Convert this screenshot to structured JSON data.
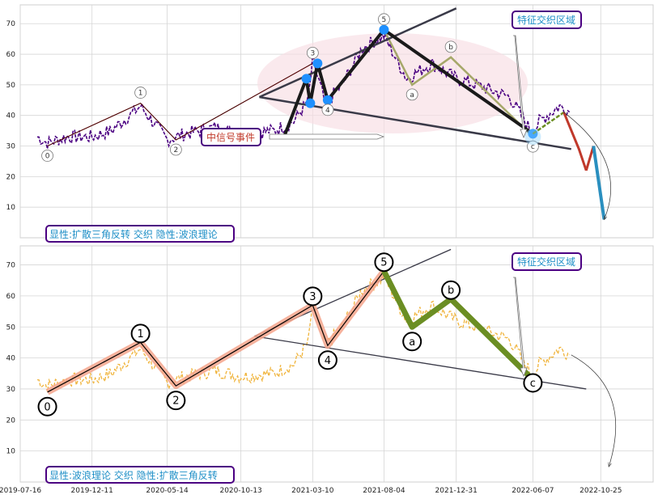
{
  "chart_data": [
    {
      "type": "line",
      "panel": "top",
      "ylim": [
        0,
        75
      ],
      "yticks": [
        10,
        20,
        30,
        40,
        50,
        60,
        70
      ],
      "grid": true,
      "series": [
        {
          "color": "#4b0082",
          "style": "dashed-noisy",
          "x": [
            "2019-08-20",
            "2019-09-10",
            "2019-10-20",
            "2019-12-11",
            "2020-01-20",
            "2020-03-20",
            "2020-05-14",
            "2020-06-20",
            "2020-08-20",
            "2020-10-13",
            "2020-12-20",
            "2021-01-30",
            "2021-03-01",
            "2021-03-10",
            "2021-04-05",
            "2021-05-10",
            "2021-06-20",
            "2021-08-04",
            "2021-09-20",
            "2021-11-10",
            "2021-12-31",
            "2022-02-10",
            "2022-04-20",
            "2022-06-07",
            "2022-06-20",
            "2022-08-01",
            "2022-08-25"
          ],
          "y": [
            33,
            31,
            33,
            33,
            35,
            43,
            32,
            34,
            36,
            34,
            35,
            38,
            45,
            58,
            44,
            50,
            62,
            66,
            52,
            57,
            52,
            50,
            46,
            34,
            38,
            43,
            41
          ]
        }
      ],
      "wave_points": [
        {
          "label": "0",
          "x": "2019-09-10",
          "y": 30
        },
        {
          "label": "1",
          "x": "2020-03-20",
          "y": 44
        },
        {
          "label": "2",
          "x": "2020-06-01",
          "y": 32
        },
        {
          "label": "3",
          "x": "2021-03-10",
          "y": 57
        },
        {
          "label": "4",
          "x": "2021-04-10",
          "y": 45
        },
        {
          "label": "5",
          "x": "2021-08-04",
          "y": 68
        },
        {
          "label": "a",
          "x": "2021-10-01",
          "y": 50
        },
        {
          "label": "b",
          "x": "2021-12-20",
          "y": 59
        },
        {
          "label": "c",
          "x": "2022-06-07",
          "y": 33
        }
      ],
      "triangle_points": [
        {
          "x": "2021-01-10",
          "y": 33
        },
        {
          "x": "2021-02-25",
          "y": 52
        },
        {
          "x": "2021-03-05",
          "y": 44
        },
        {
          "x": "2021-03-20",
          "y": 57
        },
        {
          "x": "2021-04-10",
          "y": 45
        },
        {
          "x": "2021-08-04",
          "y": 68
        },
        {
          "x": "2022-06-07",
          "y": 34
        }
      ],
      "projection": {
        "x": [
          "2022-06-07",
          "2022-08-10",
          "2022-09-10",
          "2022-09-25",
          "2022-10-10",
          "2022-11-01"
        ],
        "y": [
          34,
          41,
          29,
          22,
          30,
          6
        ]
      },
      "annotations": {
        "signal_event": "中信号事件",
        "feature_zone": "特征交织区域",
        "caption": "显性:扩散三角反转 交织 隐性:波浪理论"
      }
    },
    {
      "type": "line",
      "panel": "bottom",
      "ylim": [
        0,
        75
      ],
      "yticks": [
        10,
        20,
        30,
        40,
        50,
        60,
        70
      ],
      "grid": true,
      "series": [
        {
          "color": "#f0b43c",
          "style": "dashed-noisy",
          "x": [
            "2019-08-20",
            "2019-09-10",
            "2019-10-20",
            "2019-12-11",
            "2020-01-20",
            "2020-03-20",
            "2020-05-14",
            "2020-06-20",
            "2020-08-20",
            "2020-10-13",
            "2020-12-20",
            "2021-01-30",
            "2021-03-01",
            "2021-03-10",
            "2021-04-05",
            "2021-05-10",
            "2021-06-20",
            "2021-08-04",
            "2021-09-20",
            "2021-11-10",
            "2021-12-31",
            "2022-02-10",
            "2022-04-20",
            "2022-06-07",
            "2022-06-20",
            "2022-08-01",
            "2022-08-25"
          ],
          "y": [
            33,
            31,
            33,
            33,
            35,
            43,
            32,
            34,
            36,
            34,
            35,
            38,
            45,
            58,
            44,
            50,
            62,
            66,
            52,
            57,
            52,
            50,
            46,
            34,
            38,
            43,
            41
          ]
        }
      ],
      "wave_points": [
        {
          "label": "0",
          "x": "2019-09-10",
          "y": 29
        },
        {
          "label": "1",
          "x": "2020-03-20",
          "y": 45
        },
        {
          "label": "2",
          "x": "2020-06-01",
          "y": 31
        },
        {
          "label": "3",
          "x": "2021-03-10",
          "y": 57
        },
        {
          "label": "4",
          "x": "2021-04-10",
          "y": 44
        },
        {
          "label": "5",
          "x": "2021-08-04",
          "y": 68
        },
        {
          "label": "a",
          "x": "2021-10-01",
          "y": 50
        },
        {
          "label": "b",
          "x": "2021-12-20",
          "y": 59
        },
        {
          "label": "c",
          "x": "2022-06-07",
          "y": 33
        }
      ],
      "annotations": {
        "feature_zone": "特征交织区域",
        "caption": "显性:波浪理论 交织 隐性:扩散三角反转"
      }
    }
  ],
  "x_axis": {
    "range": [
      "2019-07-16",
      "2023-02-10"
    ],
    "ticks": [
      "2019-07-16",
      "2019-12-11",
      "2020-05-14",
      "2020-10-13",
      "2021-03-10",
      "2021-08-04",
      "2021-12-31",
      "2022-06-07",
      "2022-10-25"
    ]
  },
  "colors": {
    "top_price": "#4b0082",
    "bottom_price": "#f0b43c",
    "wave_top": "#b22222",
    "wave_bottom_up": "#f4a58c",
    "wave_bottom_down": "#6b8e23",
    "triangle": "#1a1a1a",
    "trendline": "#3a3a48",
    "zone_fill": "#f8dde4",
    "point_blue": "#1e90ff",
    "caption_text": "#1f8fc7",
    "caption_border": "#4b0082",
    "event_text": "#c0392b"
  }
}
